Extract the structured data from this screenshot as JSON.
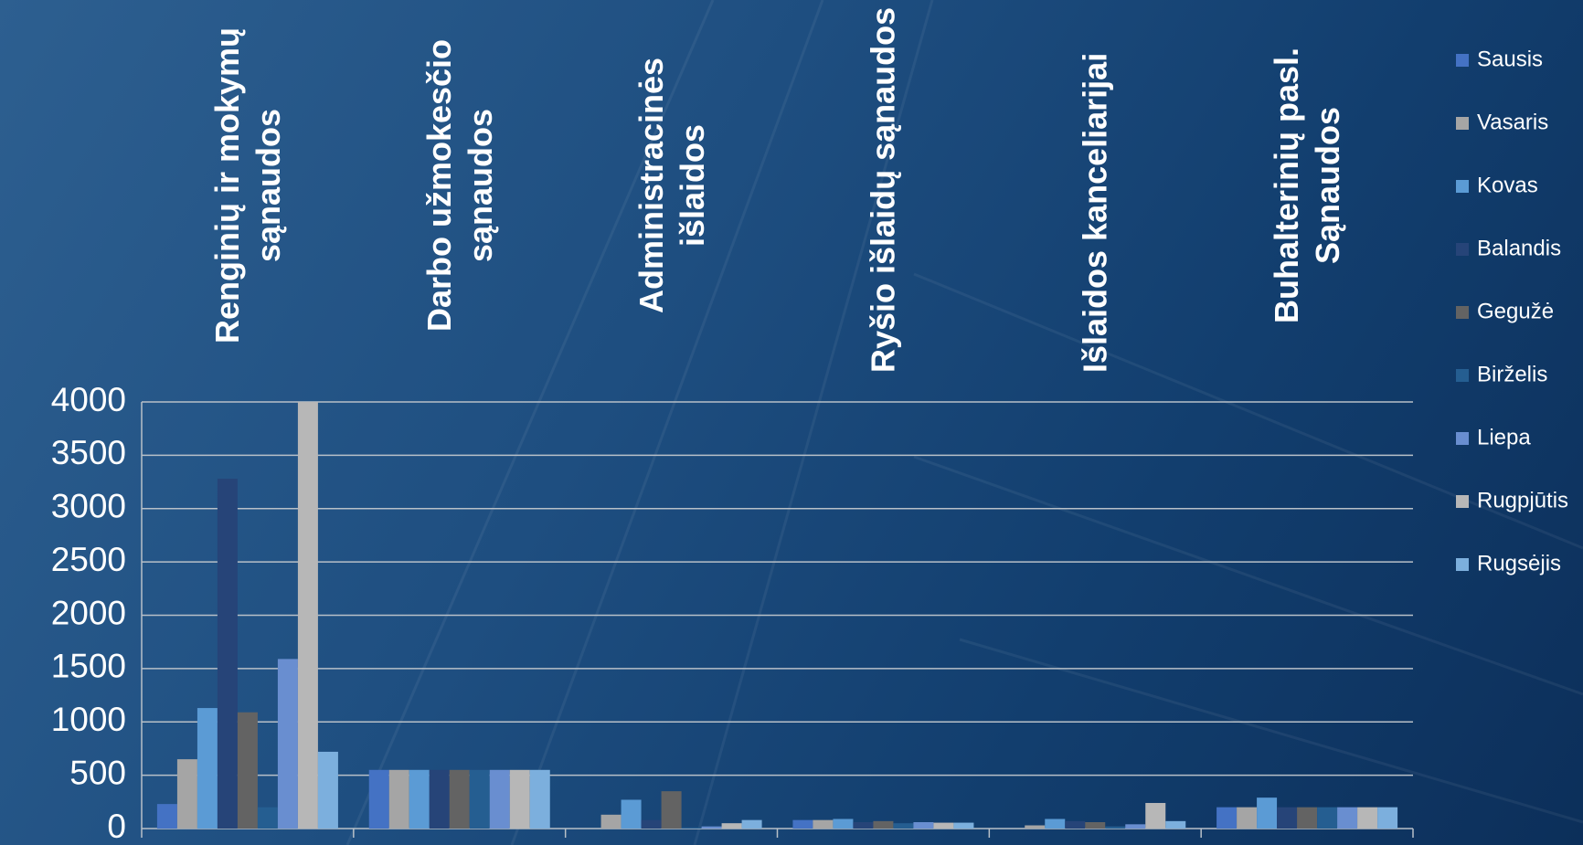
{
  "chart_data": {
    "type": "bar",
    "categories": [
      "Renginių ir mokymų sąnaudos",
      "Darbo užmokesčio sąnaudos",
      "Administracinės išlaidos",
      "Ryšio išlaidų sąnaudos",
      "Išlaidos kanceliarijai",
      "Buhalterinių pasl. Sąnaudos"
    ],
    "series": [
      {
        "name": "Sausis",
        "color": "#4472c4",
        "values": [
          230,
          550,
          0,
          80,
          0,
          200
        ]
      },
      {
        "name": "Vasaris",
        "color": "#a5a5a5",
        "values": [
          650,
          550,
          130,
          80,
          30,
          200
        ]
      },
      {
        "name": "Kovas",
        "color": "#5b9bd5",
        "values": [
          1130,
          550,
          270,
          90,
          90,
          290
        ]
      },
      {
        "name": "Balandis",
        "color": "#264478",
        "values": [
          3280,
          550,
          80,
          60,
          70,
          200
        ]
      },
      {
        "name": "Gegužė",
        "color": "#636363",
        "values": [
          1090,
          550,
          350,
          70,
          60,
          200
        ]
      },
      {
        "name": "Birželis",
        "color": "#255e91",
        "values": [
          200,
          550,
          10,
          50,
          20,
          200
        ]
      },
      {
        "name": "Liepa",
        "color": "#698ed0",
        "values": [
          1590,
          550,
          20,
          60,
          40,
          200
        ]
      },
      {
        "name": "Rugpjūtis",
        "color": "#b7b7b7",
        "values": [
          4000,
          550,
          50,
          55,
          240,
          200
        ]
      },
      {
        "name": "Rugsėjis",
        "color": "#7cafdd",
        "values": [
          720,
          550,
          80,
          55,
          70,
          200
        ]
      }
    ],
    "ylim": [
      0,
      4000
    ],
    "yticks": [
      0,
      500,
      1000,
      1500,
      2000,
      2500,
      3000,
      3500,
      4000
    ],
    "grid": true,
    "legend": "right"
  }
}
